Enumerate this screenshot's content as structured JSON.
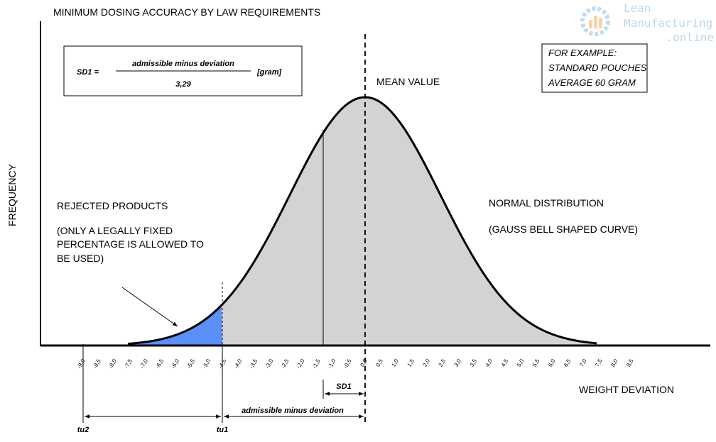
{
  "title": "MINIMUM DOSING ACCURACY BY LAW REQUIREMENTS",
  "formula": {
    "lhs": "SD1 =",
    "numerator": "admissible minus deviation",
    "denominator": "3,29",
    "unit": "[gram]"
  },
  "example": {
    "lines": [
      "FOR EXAMPLE:",
      "STANDARD POUCHES",
      "AVERAGE 60 GRAM"
    ]
  },
  "mean_label": "MEAN VALUE",
  "y_axis_label": "FREQUENCY",
  "x_axis_label": "WEIGHT DEVIATION",
  "rejected": {
    "title": "REJECTED PRODUCTS",
    "note": [
      "(ONLY A LEGALLY FIXED",
      "PERCENTAGE IS ALLOWED TO",
      "BE USED)"
    ]
  },
  "normal": {
    "title": "NORMAL DISTRIBUTION",
    "subtitle": "(GAUSS BELL SHAPED CURVE)"
  },
  "ticks": [
    "-9,0",
    "-8,5",
    "-8,0",
    "-7,5",
    "-7,0",
    "-6,5",
    "-6,0",
    "-5,5",
    "-5,0",
    "-4,5",
    "-4,0",
    "-3,5",
    "-3,0",
    "-2,5",
    "-2,0",
    "-1,5",
    "-1,0",
    "-0,5",
    "0,0",
    "0,5",
    "1,0",
    "1,5",
    "2,0",
    "2,5",
    "3,0",
    "3,5",
    "4,0",
    "4,5",
    "5,0",
    "5,5",
    "6,0",
    "6,5",
    "7,0",
    "7,5",
    "8,0",
    "8,5"
  ],
  "markers": {
    "sd1": "SD1",
    "admissible": "admissible minus deviation",
    "tu2": "tu2",
    "tu1": "tu1"
  },
  "logo": {
    "line1": "Lean",
    "line2": "Manufacturing",
    "line3": ".online"
  }
}
